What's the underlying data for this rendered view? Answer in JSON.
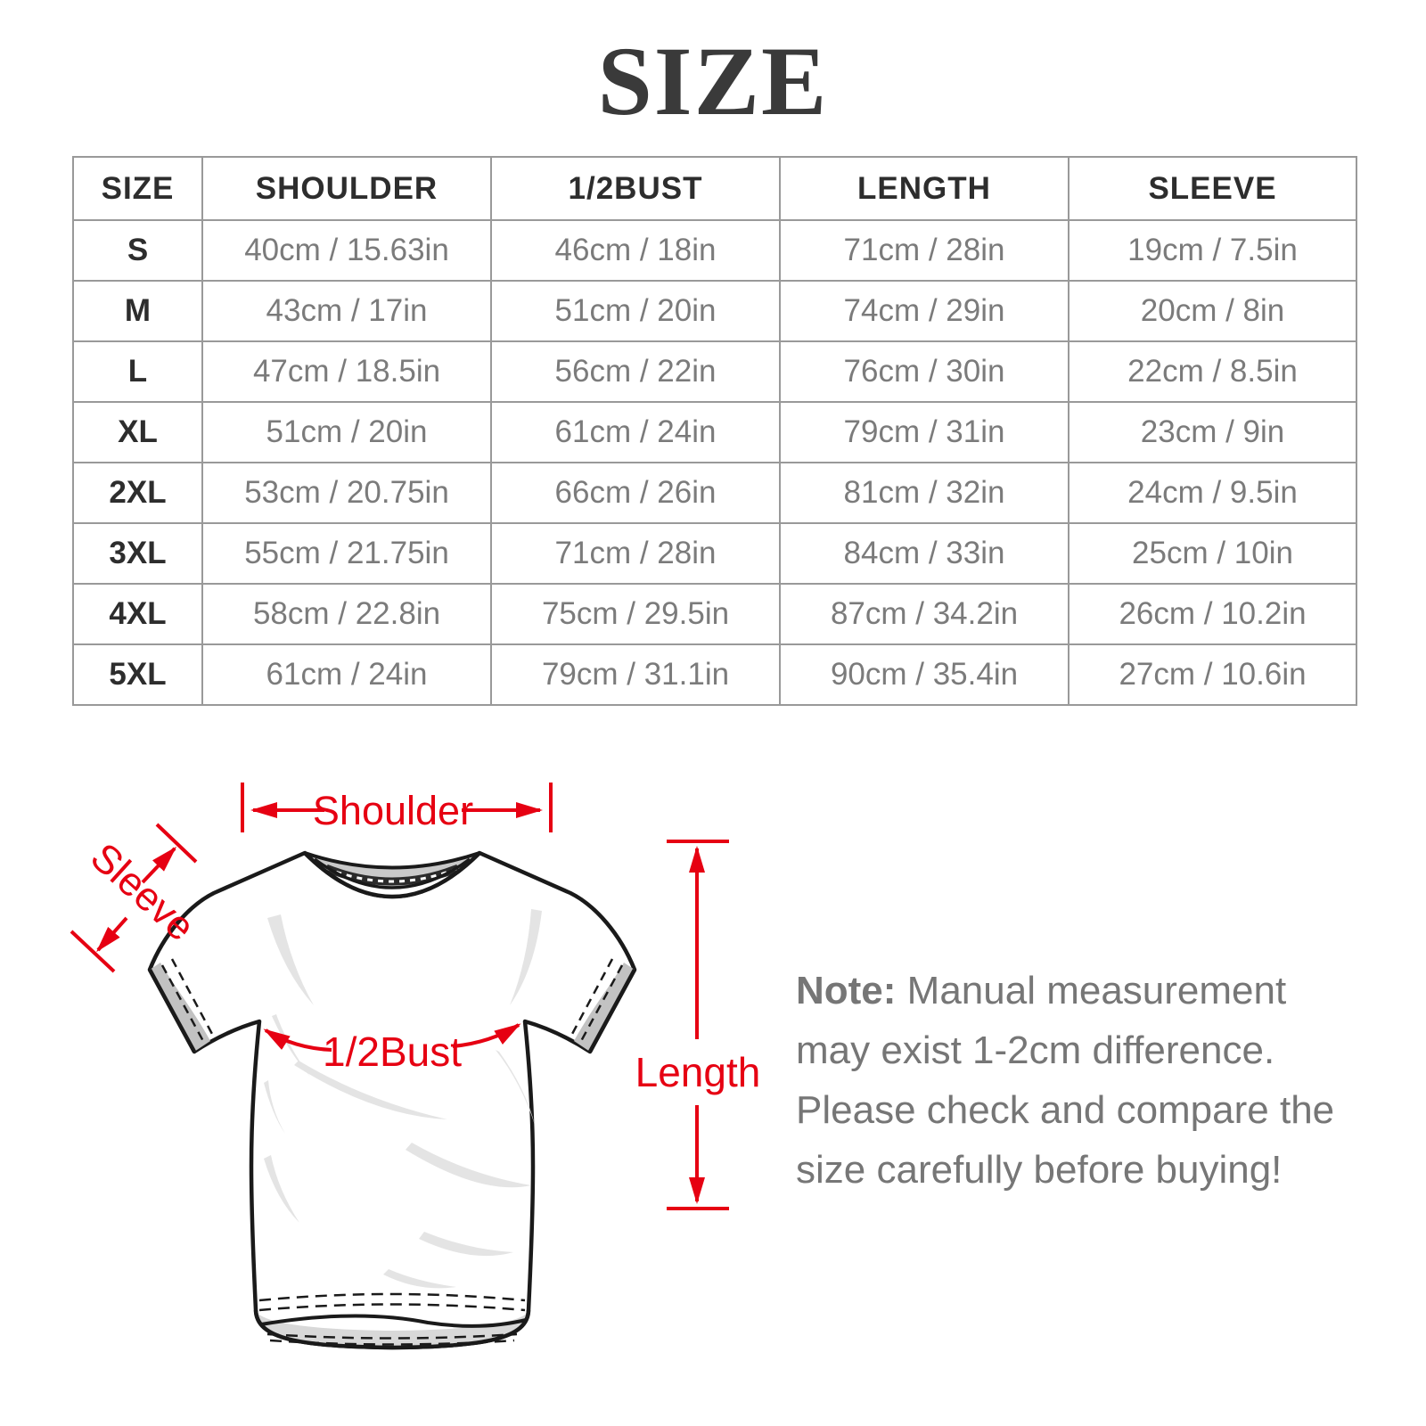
{
  "title": "SIZE",
  "chart_data": {
    "type": "table",
    "title": "SIZE",
    "columns": [
      "SIZE",
      "SHOULDER",
      "1/2BUST",
      "LENGTH",
      "SLEEVE"
    ],
    "rows": [
      [
        "S",
        "40cm / 15.63in",
        "46cm / 18in",
        "71cm / 28in",
        "19cm / 7.5in"
      ],
      [
        "M",
        "43cm / 17in",
        "51cm / 20in",
        "74cm / 29in",
        "20cm / 8in"
      ],
      [
        "L",
        "47cm / 18.5in",
        "56cm / 22in",
        "76cm / 30in",
        "22cm / 8.5in"
      ],
      [
        "XL",
        "51cm / 20in",
        "61cm / 24in",
        "79cm / 31in",
        "23cm / 9in"
      ],
      [
        "2XL",
        "53cm / 20.75in",
        "66cm / 26in",
        "81cm / 32in",
        "24cm / 9.5in"
      ],
      [
        "3XL",
        "55cm / 21.75in",
        "71cm / 28in",
        "84cm / 33in",
        "25cm / 10in"
      ],
      [
        "4XL",
        "58cm / 22.8in",
        "75cm / 29.5in",
        "87cm / 34.2in",
        "26cm / 10.2in"
      ],
      [
        "5XL",
        "61cm / 24in",
        "79cm / 31.1in",
        "90cm / 35.4in",
        "27cm / 10.6in"
      ]
    ]
  },
  "diagram": {
    "labels": {
      "shoulder": "Shoulder",
      "sleeve": "Sleeve",
      "half_bust": "1/2Bust",
      "length": "Length"
    },
    "accent_color": "#e60012"
  },
  "note": {
    "label": "Note:",
    "body": "Manual measurement may exist 1-2cm difference. Please check and compare the size carefully before buying!"
  }
}
